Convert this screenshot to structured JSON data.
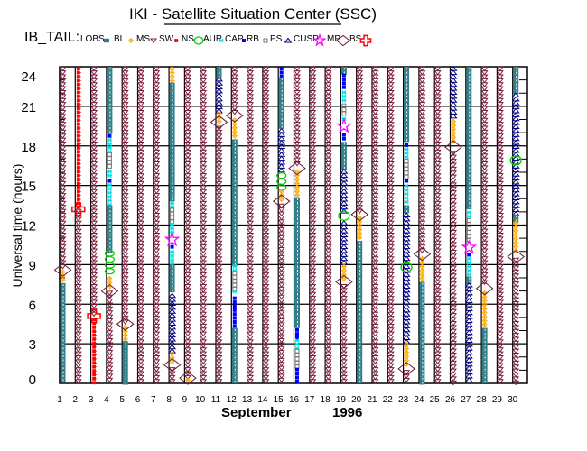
{
  "chart_data": {
    "type": "timeline",
    "title": "IKI - Satellite Situation Center (SSC)",
    "instrument": "IB_TAIL:",
    "legend": [
      {
        "label": "LOBS",
        "symbol": "square",
        "color": "#2e7d88"
      },
      {
        "label": "BL",
        "symbol": "sun",
        "color": "#ffa500"
      },
      {
        "label": "MS",
        "symbol": "triangle-down",
        "color": "#7a1f3d"
      },
      {
        "label": "SW",
        "symbol": "asterisk",
        "color": "#ff0000"
      },
      {
        "label": "NS",
        "symbol": "circle",
        "color": "#00d000"
      },
      {
        "label": "AUR",
        "symbol": "asterisk",
        "color": "#00e5ee"
      },
      {
        "label": "CAP",
        "symbol": "dot",
        "color": "#0000ff"
      },
      {
        "label": "RB",
        "symbol": "square-open",
        "color": "#777777"
      },
      {
        "label": "PS",
        "symbol": "triangle-up",
        "color": "#000080"
      },
      {
        "label": "CUSP",
        "symbol": "star",
        "color": "#ff00ff"
      },
      {
        "label": "MP",
        "symbol": "diamond",
        "color": "#6b1a2e"
      },
      {
        "label": "BS",
        "symbol": "cross",
        "color": "#ff0000"
      }
    ],
    "xlabel": "September",
    "year": "1996",
    "ylabel": "Universal time (hours)",
    "ylim": [
      0,
      24
    ],
    "yticks": [
      "0",
      "3",
      "6",
      "9",
      "12",
      "15",
      "18",
      "21",
      "24"
    ],
    "xticks": [
      "1",
      "2",
      "3",
      "4",
      "5",
      "6",
      "7",
      "8",
      "9",
      "10",
      "11",
      "12",
      "13",
      "14",
      "15",
      "16",
      "17",
      "18",
      "19",
      "20",
      "21",
      "22",
      "23",
      "24",
      "25",
      "26",
      "27",
      "28",
      "29",
      "30"
    ],
    "days": [
      {
        "day": 1,
        "segments": [
          [
            24,
            8.6,
            "MS"
          ],
          [
            8.6,
            7.6,
            "BL"
          ],
          [
            7.6,
            0,
            "LOBS"
          ]
        ],
        "markers": [
          [
            8.6,
            "MP"
          ]
        ]
      },
      {
        "day": 2,
        "segments": [
          [
            24,
            13.3,
            "SW"
          ],
          [
            13.2,
            0,
            "MS"
          ]
        ],
        "markers": [
          [
            13.2,
            "BS"
          ]
        ]
      },
      {
        "day": 3,
        "segments": [
          [
            24,
            5.2,
            "MS"
          ],
          [
            5.0,
            0,
            "SW"
          ]
        ],
        "markers": [
          [
            5.1,
            "BS"
          ]
        ]
      },
      {
        "day": 4,
        "segments": [
          [
            24,
            18.9,
            "LOBS"
          ],
          [
            18.9,
            18.6,
            "CAP"
          ],
          [
            18.6,
            17.5,
            "AUR"
          ],
          [
            17.5,
            16.2,
            "RB"
          ],
          [
            16.2,
            15.5,
            "AUR"
          ],
          [
            15.5,
            15.2,
            "CAP"
          ],
          [
            15.2,
            13.5,
            "AUR"
          ],
          [
            13.5,
            10,
            "LOBS"
          ],
          [
            10,
            8.1,
            "NS"
          ],
          [
            8.1,
            7.2,
            "BL"
          ],
          [
            7.0,
            0,
            "MS"
          ]
        ],
        "markers": [
          [
            7.0,
            "MP"
          ]
        ]
      },
      {
        "day": 5,
        "segments": [
          [
            24,
            4.5,
            "MS"
          ],
          [
            4.4,
            3.2,
            "BL"
          ],
          [
            3.2,
            0,
            "LOBS"
          ]
        ],
        "markers": [
          [
            4.5,
            "MP"
          ]
        ]
      },
      {
        "day": 6,
        "segments": [
          [
            24,
            0,
            "MS"
          ]
        ],
        "markers": []
      },
      {
        "day": 7,
        "segments": [
          [
            24,
            0,
            "MS"
          ]
        ],
        "markers": []
      },
      {
        "day": 8,
        "segments": [
          [
            24,
            22.8,
            "BL"
          ],
          [
            22.8,
            13.8,
            "LOBS"
          ],
          [
            13.8,
            13.3,
            "AUR"
          ],
          [
            13.3,
            12.2,
            "RB"
          ],
          [
            12.2,
            11.2,
            "AUR"
          ],
          [
            10.5,
            10.1,
            "CAP"
          ],
          [
            10.1,
            9,
            "AUR"
          ],
          [
            9,
            6.8,
            "LOBS"
          ],
          [
            6.8,
            2.4,
            "PS"
          ],
          [
            2.4,
            1.5,
            "BL"
          ],
          [
            1.2,
            0,
            "MS"
          ]
        ],
        "markers": [
          [
            10.9,
            "CUSP"
          ],
          [
            1.4,
            "MP"
          ]
        ]
      },
      {
        "day": 9,
        "segments": [
          [
            24,
            0.4,
            "MS"
          ],
          [
            0.4,
            0,
            "BL"
          ]
        ],
        "markers": [
          [
            0.4,
            "MP"
          ]
        ]
      },
      {
        "day": 10,
        "segments": [
          [
            24,
            0,
            "MS"
          ]
        ],
        "markers": []
      },
      {
        "day": 11,
        "segments": [
          [
            24,
            23.2,
            "LOBS"
          ],
          [
            23.2,
            20.6,
            "PS"
          ],
          [
            20.6,
            19.6,
            "BL"
          ],
          [
            19.5,
            0,
            "MS"
          ]
        ],
        "markers": [
          [
            19.8,
            "MP"
          ]
        ]
      },
      {
        "day": 12,
        "segments": [
          [
            24,
            20.4,
            "MS"
          ],
          [
            20.1,
            18.5,
            "BL"
          ],
          [
            18.5,
            9,
            "LOBS"
          ],
          [
            9,
            8.5,
            "AUR"
          ],
          [
            8.5,
            7.1,
            "RB"
          ],
          [
            7.1,
            6.7,
            "AUR"
          ],
          [
            6.6,
            4.2,
            "CAP"
          ],
          [
            4.2,
            0,
            "LOBS"
          ]
        ],
        "markers": [
          [
            20.3,
            "MP"
          ]
        ]
      },
      {
        "day": 13,
        "segments": [
          [
            24,
            0,
            "MS"
          ]
        ],
        "markers": []
      },
      {
        "day": 14,
        "segments": [
          [
            24,
            0,
            "MS"
          ]
        ],
        "markers": []
      },
      {
        "day": 15,
        "segments": [
          [
            24,
            23.2,
            "CAP"
          ],
          [
            23.2,
            19.3,
            "LOBS"
          ],
          [
            19.3,
            15.9,
            "PS"
          ],
          [
            15.9,
            14.7,
            "NS"
          ],
          [
            14.7,
            13.9,
            "BL"
          ],
          [
            13.6,
            0,
            "MS"
          ]
        ],
        "markers": [
          [
            13.8,
            "MP"
          ]
        ]
      },
      {
        "day": 16,
        "segments": [
          [
            24,
            16.5,
            "MS"
          ],
          [
            16.2,
            14.1,
            "BL"
          ],
          [
            14.1,
            4.2,
            "LOBS"
          ],
          [
            4.2,
            3.4,
            "CAP"
          ],
          [
            3.4,
            2.6,
            "AUR"
          ],
          [
            2.6,
            1.2,
            "RB"
          ],
          [
            1.2,
            0,
            "CAP"
          ]
        ],
        "markers": [
          [
            16.3,
            "MP"
          ]
        ]
      },
      {
        "day": 17,
        "segments": [
          [
            24,
            0,
            "MS"
          ]
        ],
        "markers": []
      },
      {
        "day": 18,
        "segments": [
          [
            24,
            0,
            "MS"
          ]
        ],
        "markers": []
      },
      {
        "day": 19,
        "segments": [
          [
            24,
            23.5,
            "LOBS"
          ],
          [
            23.5,
            22.2,
            "CAP"
          ],
          [
            22.2,
            21.2,
            "AUR"
          ],
          [
            21.2,
            20.2,
            "RB"
          ],
          [
            20.2,
            19.8,
            "AUR"
          ],
          [
            19,
            18.3,
            "CAP"
          ],
          [
            18.3,
            16.2,
            "LOBS"
          ],
          [
            16.2,
            13,
            "PS"
          ],
          [
            12.3,
            9,
            "PS"
          ],
          [
            9,
            7.8,
            "BL"
          ],
          [
            7.5,
            0,
            "MS"
          ]
        ],
        "markers": [
          [
            19.5,
            "CUSP"
          ],
          [
            12.7,
            "NS"
          ],
          [
            7.7,
            "MP"
          ]
        ]
      },
      {
        "day": 20,
        "segments": [
          [
            24,
            13,
            "MS"
          ],
          [
            12.7,
            10.8,
            "BL"
          ],
          [
            10.8,
            0,
            "LOBS"
          ]
        ],
        "markers": [
          [
            12.8,
            "MP"
          ]
        ]
      },
      {
        "day": 21,
        "segments": [
          [
            24,
            0,
            "MS"
          ]
        ],
        "markers": []
      },
      {
        "day": 22,
        "segments": [
          [
            24,
            0,
            "MS"
          ]
        ],
        "markers": []
      },
      {
        "day": 23,
        "segments": [
          [
            24,
            18.2,
            "LOBS"
          ],
          [
            18.2,
            17.9,
            "CAP"
          ],
          [
            17.9,
            17,
            "AUR"
          ],
          [
            17,
            15.5,
            "RB"
          ],
          [
            15.5,
            15.1,
            "CAP"
          ],
          [
            15.1,
            13.5,
            "AUR"
          ],
          [
            13.5,
            12.9,
            "LOBS"
          ],
          [
            12.9,
            3.1,
            "PS"
          ],
          [
            3.1,
            1.3,
            "BL"
          ],
          [
            1.0,
            0,
            "MS"
          ]
        ],
        "markers": [
          [
            8.8,
            "NS"
          ],
          [
            1.1,
            "MP"
          ]
        ]
      },
      {
        "day": 24,
        "segments": [
          [
            24,
            10,
            "MS"
          ],
          [
            9.6,
            7.7,
            "BL"
          ],
          [
            7.7,
            0,
            "LOBS"
          ]
        ],
        "markers": [
          [
            9.8,
            "MP"
          ]
        ]
      },
      {
        "day": 25,
        "segments": [
          [
            24,
            0,
            "MS"
          ]
        ],
        "markers": []
      },
      {
        "day": 26,
        "segments": [
          [
            24,
            20,
            "PS"
          ],
          [
            20,
            18.1,
            "BL"
          ],
          [
            17.6,
            0,
            "MS"
          ]
        ],
        "markers": [
          [
            17.9,
            "MP"
          ]
        ]
      },
      {
        "day": 27,
        "segments": [
          [
            24,
            13.1,
            "LOBS"
          ],
          [
            13.1,
            12.5,
            "AUR"
          ],
          [
            12.5,
            10.8,
            "RB"
          ],
          [
            9.9,
            9.6,
            "CAP"
          ],
          [
            9.6,
            8.1,
            "AUR"
          ],
          [
            8.1,
            7.6,
            "LOBS"
          ],
          [
            7.6,
            0,
            "PS"
          ]
        ],
        "markers": [
          [
            10.3,
            "CUSP"
          ]
        ]
      },
      {
        "day": 28,
        "segments": [
          [
            24,
            7.4,
            "MS"
          ],
          [
            7.0,
            4.2,
            "BL"
          ],
          [
            4.2,
            0,
            "LOBS"
          ]
        ],
        "markers": [
          [
            7.2,
            "MP"
          ]
        ]
      },
      {
        "day": 29,
        "segments": [
          [
            24,
            0,
            "MS"
          ]
        ],
        "markers": []
      },
      {
        "day": 30,
        "segments": [
          [
            24,
            22,
            "LOBS"
          ],
          [
            22,
            12.8,
            "PS"
          ],
          [
            12.8,
            12.3,
            "LOBS"
          ],
          [
            12.3,
            9.8,
            "BL"
          ],
          [
            9.5,
            0,
            "MS"
          ]
        ],
        "markers": [
          [
            16.9,
            "NS"
          ],
          [
            9.6,
            "MP"
          ]
        ]
      }
    ]
  }
}
